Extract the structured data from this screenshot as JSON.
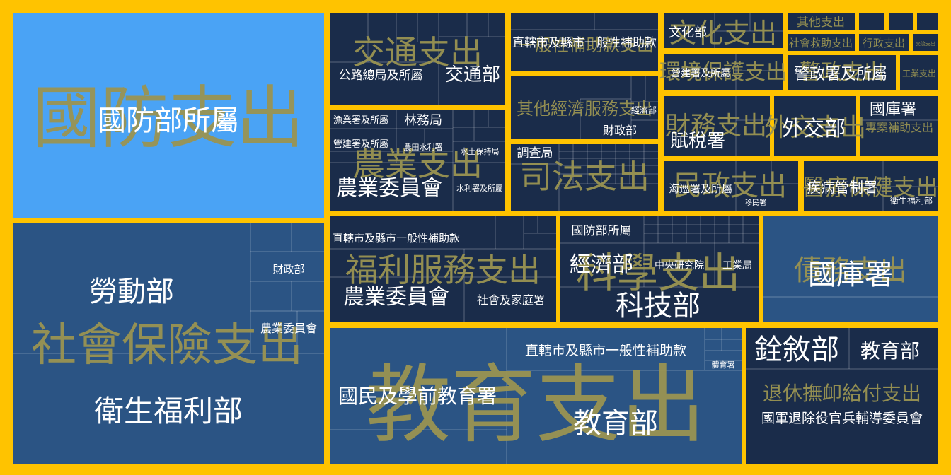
{
  "chart_data": {
    "type": "treemap",
    "colors": {
      "border": "#ffc300",
      "group_label": "#9a9452",
      "label": "#ffffff",
      "highlight": "#4aa3f5",
      "mid": "#2b5484",
      "dark": "#1a2c4a"
    },
    "groups": [
      {
        "name": "國防支出",
        "leaves": [
          {
            "name": "國防部所屬"
          }
        ]
      },
      {
        "name": "社會保險支出",
        "leaves": [
          {
            "name": "勞動部"
          },
          {
            "name": "衛生福利部"
          },
          {
            "name": "財政部"
          },
          {
            "name": "農業委員會"
          }
        ]
      },
      {
        "name": "交通支出",
        "leaves": [
          {
            "name": "公路總局及所屬"
          },
          {
            "name": "交通部"
          }
        ]
      },
      {
        "name": "農業支出",
        "leaves": [
          {
            "name": "農業委員會"
          },
          {
            "name": "漁業署及所屬"
          },
          {
            "name": "林務局"
          },
          {
            "name": "營建署及所屬"
          },
          {
            "name": "農田水利署"
          },
          {
            "name": "水土保持局"
          },
          {
            "name": "水利署及所屬"
          }
        ]
      },
      {
        "name": "一般性補助款支出",
        "leaves": [
          {
            "name": "直轄市及縣市一般性補助款"
          }
        ]
      },
      {
        "name": "其他經濟服務支出",
        "leaves": [
          {
            "name": "經濟部"
          },
          {
            "name": "財政部"
          }
        ]
      },
      {
        "name": "司法支出",
        "leaves": [
          {
            "name": "調查局"
          }
        ]
      },
      {
        "name": "文化支出",
        "leaves": [
          {
            "name": "文化部"
          }
        ]
      },
      {
        "name": "其他支出",
        "leaves": []
      },
      {
        "name": "社會救助支出",
        "leaves": []
      },
      {
        "name": "行政支出",
        "leaves": []
      },
      {
        "name": "交流支出",
        "leaves": []
      },
      {
        "name": "環境保護支出",
        "leaves": [
          {
            "name": "營建署及所屬"
          }
        ]
      },
      {
        "name": "警政支出",
        "leaves": [
          {
            "name": "警政署及所屬"
          }
        ]
      },
      {
        "name": "工業支出",
        "leaves": []
      },
      {
        "name": "財務支出",
        "leaves": [
          {
            "name": "賦稅署"
          }
        ]
      },
      {
        "name": "外交支出",
        "leaves": [
          {
            "name": "外交部"
          }
        ]
      },
      {
        "name": "專案補助支出",
        "leaves": [
          {
            "name": "國庫署"
          }
        ]
      },
      {
        "name": "民政支出",
        "leaves": [
          {
            "name": "海巡署及所屬"
          },
          {
            "name": "移民署"
          }
        ]
      },
      {
        "name": "醫療保健支出",
        "leaves": [
          {
            "name": "疾病管制署"
          },
          {
            "name": "衛生福利部"
          }
        ]
      },
      {
        "name": "福利服務支出",
        "leaves": [
          {
            "name": "直轄市及縣市一般性補助款"
          },
          {
            "name": "農業委員會"
          },
          {
            "name": "社會及家庭署"
          }
        ]
      },
      {
        "name": "科學支出",
        "leaves": [
          {
            "name": "國防部所屬"
          },
          {
            "name": "經濟部"
          },
          {
            "name": "中央研究院"
          },
          {
            "name": "工業局"
          },
          {
            "name": "科技部"
          }
        ]
      },
      {
        "name": "債務支出",
        "leaves": [
          {
            "name": "國庫署"
          }
        ]
      },
      {
        "name": "教育支出",
        "leaves": [
          {
            "name": "直轄市及縣市一般性補助款"
          },
          {
            "name": "體育署"
          },
          {
            "name": "國民及學前教育署"
          },
          {
            "name": "教育部"
          }
        ]
      },
      {
        "name": "退休撫卹給付支出",
        "leaves": [
          {
            "name": "銓敘部"
          },
          {
            "name": "教育部"
          },
          {
            "name": "國軍退除役官兵輔導委員會"
          }
        ]
      }
    ]
  }
}
